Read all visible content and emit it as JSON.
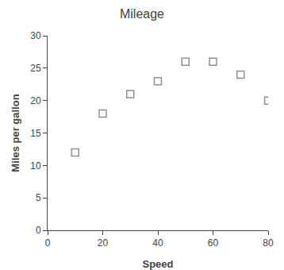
{
  "chart_data": {
    "type": "scatter",
    "title": "Mileage",
    "xlabel": "Speed",
    "ylabel": "Miles per gallon",
    "x": [
      10,
      20,
      30,
      40,
      50,
      60,
      70,
      80
    ],
    "y": [
      12,
      18,
      21,
      23,
      26,
      26,
      24,
      20
    ],
    "xlim": [
      0,
      80
    ],
    "ylim": [
      0,
      30
    ],
    "xticks": [
      0,
      20,
      40,
      60,
      80
    ],
    "yticks": [
      0,
      5,
      10,
      15,
      20,
      25,
      30
    ],
    "marker": "square",
    "color": "#909090",
    "grid": false
  }
}
